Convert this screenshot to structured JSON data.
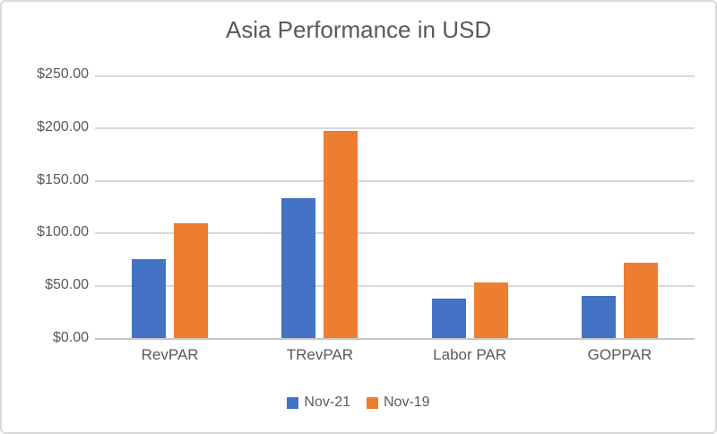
{
  "colors": {
    "background": "#FFFFFF",
    "border": "#D9D9D9",
    "gridline": "#D9D9D9",
    "axis": "#C6C6C6",
    "text": "#595959",
    "series_blue": "#4472C4",
    "series_orange": "#ED7D31"
  },
  "chart_data": {
    "type": "bar",
    "title": "Asia Performance in USD",
    "xlabel": "",
    "ylabel": "",
    "categories": [
      "RevPAR",
      "TRevPAR",
      "Labor PAR",
      "GOPPAR"
    ],
    "series": [
      {
        "name": "Nov-21",
        "color": "#4472C4",
        "values": [
          75,
          134,
          38,
          40
        ]
      },
      {
        "name": "Nov-19",
        "color": "#ED7D31",
        "values": [
          110,
          198,
          53,
          72
        ]
      }
    ],
    "ylim": [
      0,
      250
    ],
    "yticks": [
      {
        "value": 0,
        "label": "$0.00"
      },
      {
        "value": 50,
        "label": "$50.00"
      },
      {
        "value": 100,
        "label": "$100.00"
      },
      {
        "value": 150,
        "label": "$150.00"
      },
      {
        "value": 200,
        "label": "$200.00"
      },
      {
        "value": 250,
        "label": "$250.00"
      }
    ],
    "grid": true,
    "legend_position": "bottom"
  }
}
